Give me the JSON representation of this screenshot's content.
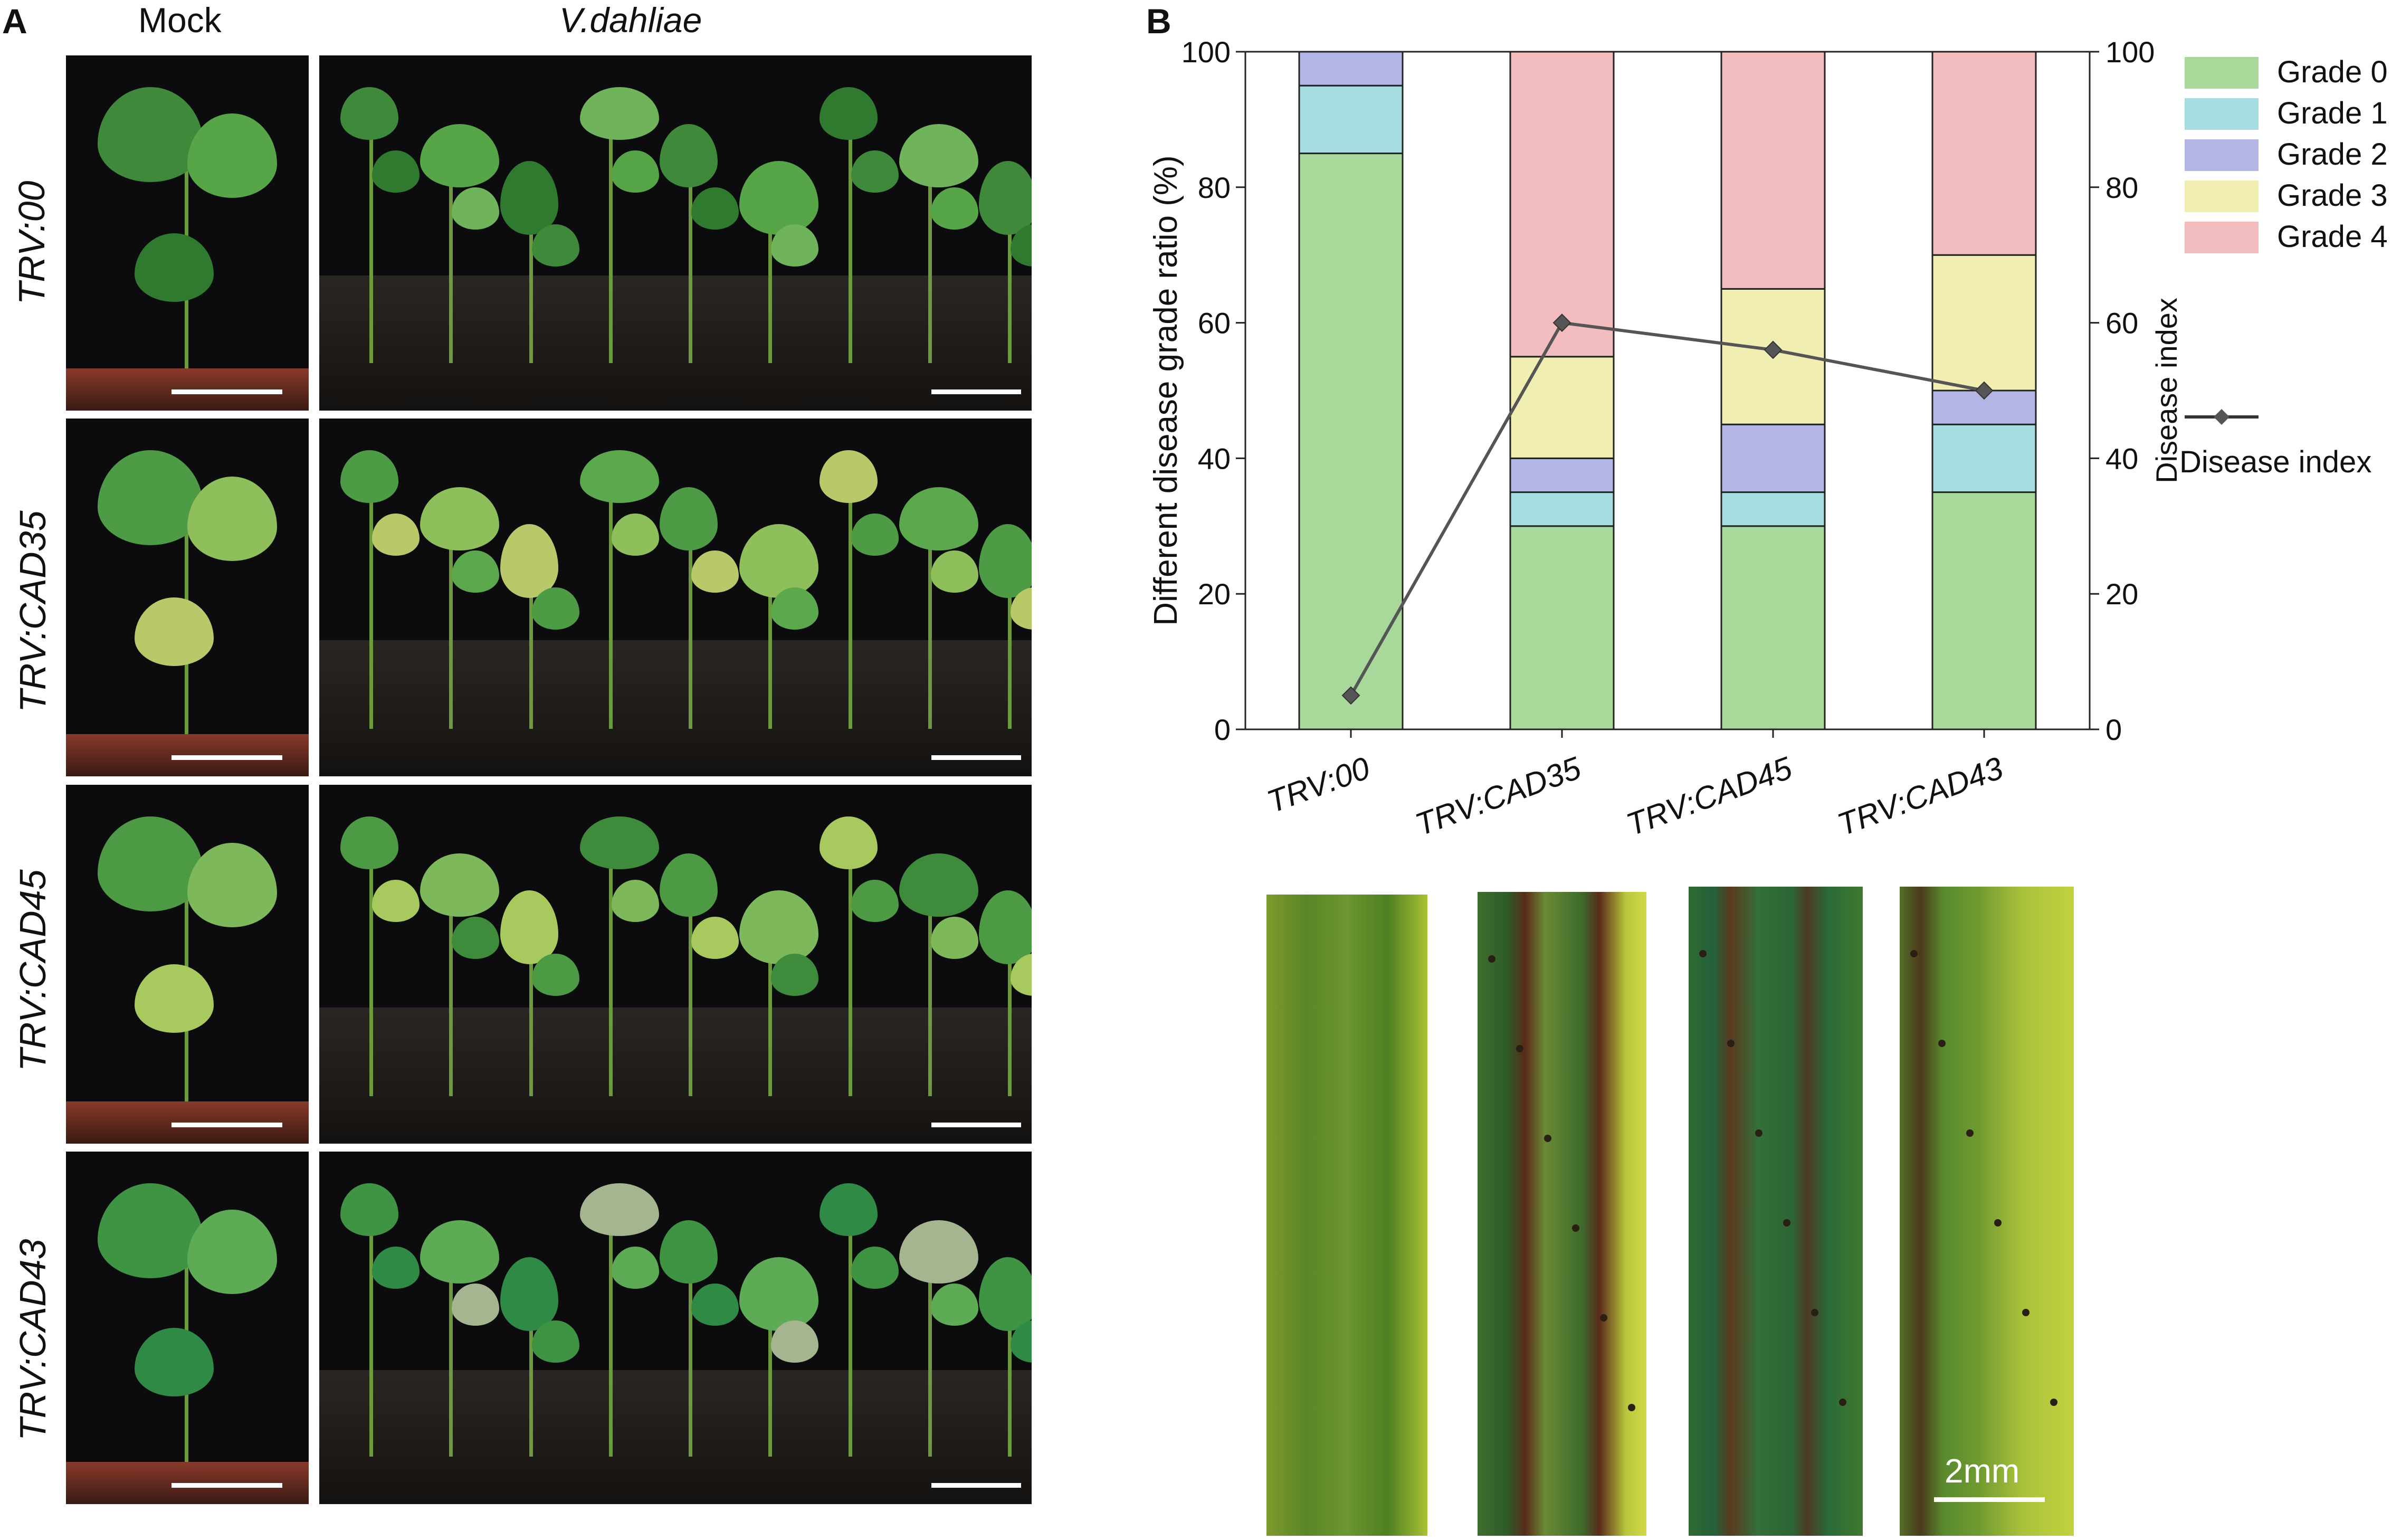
{
  "panel_a": {
    "letter": "A",
    "col_mock": "Mock",
    "col_vd": "V.dahliae",
    "rows": [
      "TRV:00",
      "TRV:CAD35",
      "TRV:CAD45",
      "TRV:CAD43"
    ]
  },
  "panel_b": {
    "letter": "B",
    "scale_label": "2mm"
  },
  "colors": {
    "grade0": "#a8d89a",
    "grade1": "#a6dde1",
    "grade2": "#b3b6e4",
    "grade3": "#f0eeb0",
    "grade4": "#f3bcbe",
    "line": "#555555"
  },
  "chart_data": {
    "type": "bar",
    "stacked": true,
    "categories": [
      "TRV:00",
      "TRV:CAD35",
      "TRV:CAD45",
      "TRV:CAD43"
    ],
    "series": [
      {
        "name": "Grade 0",
        "values": [
          85,
          30,
          30,
          35
        ]
      },
      {
        "name": "Grade 1",
        "values": [
          10,
          5,
          5,
          10
        ]
      },
      {
        "name": "Grade 2",
        "values": [
          5,
          5,
          10,
          5
        ]
      },
      {
        "name": "Grade 3",
        "values": [
          0,
          15,
          20,
          20
        ]
      },
      {
        "name": "Grade 4",
        "values": [
          0,
          45,
          35,
          30
        ]
      }
    ],
    "line_series": {
      "name": "Disease index",
      "values": [
        5,
        60,
        56,
        50
      ]
    },
    "ylabel": "Different disease grade ratio (%)",
    "y2label": "Disease index",
    "ylim": [
      0,
      100
    ],
    "y2lim": [
      0,
      100
    ],
    "yticks": [
      0,
      20,
      40,
      60,
      80,
      100
    ],
    "legend_position": "right"
  }
}
